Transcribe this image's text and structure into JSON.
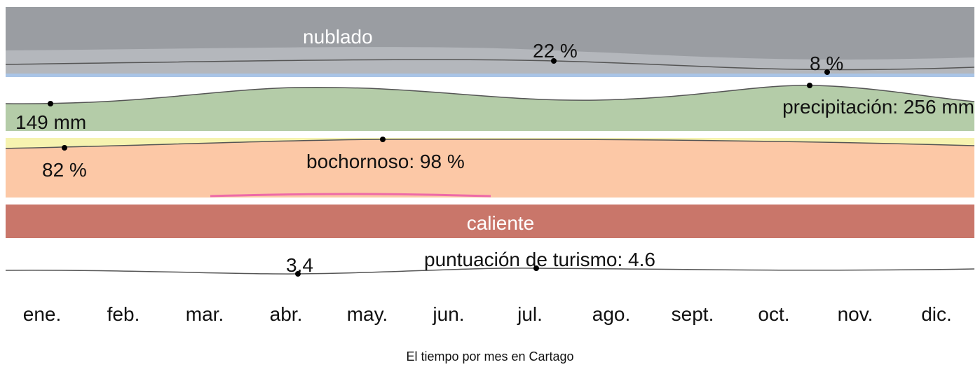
{
  "bands": {
    "cloud": {
      "label": "nublado",
      "min": "22 %",
      "max": "8 %"
    },
    "precipitation": {
      "label": "precipitación: 256 mm",
      "min": "149 mm"
    },
    "muggy": {
      "label": "bochornoso: 98 %",
      "min": "82 %"
    },
    "temperature": {
      "label": "caliente"
    },
    "tourism": {
      "label": "puntuación de turismo: 4.6",
      "min": "3.4"
    }
  },
  "months": [
    "ene.",
    "feb.",
    "mar.",
    "abr.",
    "may.",
    "jun.",
    "jul.",
    "ago.",
    "sept.",
    "oct.",
    "nov.",
    "dic."
  ],
  "caption": "El tiempo por mes en Cartago"
}
